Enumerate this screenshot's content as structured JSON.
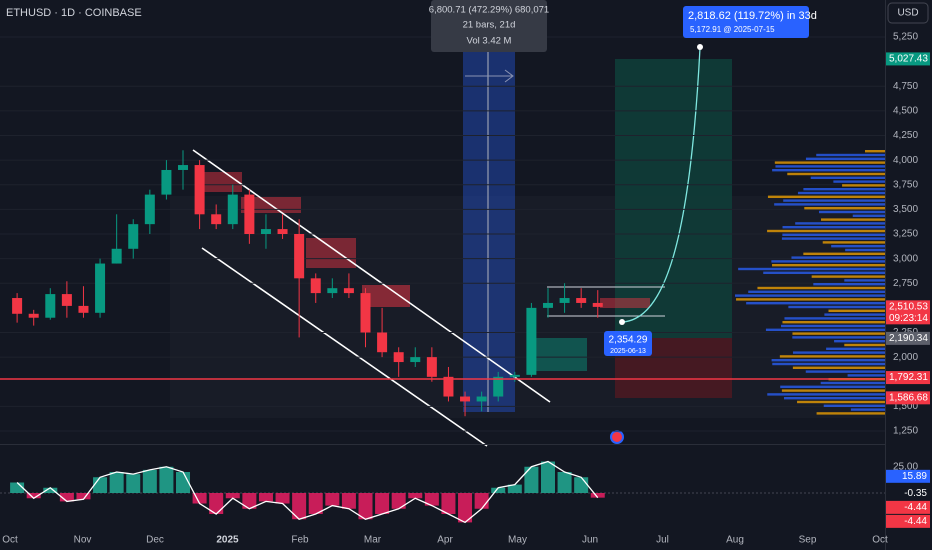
{
  "header": {
    "symbol": "ETHUSD · 1D · COINBASE",
    "currency": "USD"
  },
  "measure": {
    "line1": "6,800.71 (472.29%) 680,071",
    "line2": "21 bars, 21d",
    "line3": "Vol 3.42 M"
  },
  "projection": {
    "line1": "2,818.62 (119.72%) in 33d",
    "line2": "5,172.91 @ 2025-07-15"
  },
  "low_label": {
    "price": "2,354.29",
    "date": "2025-06-13"
  },
  "price_axis": {
    "ticks": [
      {
        "value": 5250,
        "label": "5,250"
      },
      {
        "value": 4750,
        "label": "4,750"
      },
      {
        "value": 4500,
        "label": "4,500"
      },
      {
        "value": 4250,
        "label": "4,250"
      },
      {
        "value": 4000,
        "label": "4,000"
      },
      {
        "value": 3750,
        "label": "3,750"
      },
      {
        "value": 3500,
        "label": "3,500"
      },
      {
        "value": 3250,
        "label": "3,250"
      },
      {
        "value": 3000,
        "label": "3,000"
      },
      {
        "value": 2750,
        "label": "2,750"
      },
      {
        "value": 2250,
        "label": "2,250"
      },
      {
        "value": 2000,
        "label": "2,000"
      },
      {
        "value": 1500,
        "label": "1,500"
      },
      {
        "value": 1250,
        "label": "1,250"
      }
    ],
    "badges": [
      {
        "value": 5027.43,
        "label": "5,027.43",
        "color": "#089981"
      },
      {
        "value": 2510.53,
        "label": "2,510.53",
        "sub": "09:23:14",
        "color": "#f23645"
      },
      {
        "value": 2190.34,
        "label": "2,190.34",
        "color": "#5d606b"
      },
      {
        "value": 1792.31,
        "label": "1,792.31",
        "color": "#f23645"
      },
      {
        "value": 1586.68,
        "label": "1,586.68",
        "color": "#f23645"
      }
    ]
  },
  "time_axis": [
    "Oct",
    "Nov",
    "Dec",
    "2025",
    "Feb",
    "Mar",
    "Apr",
    "May",
    "Jun",
    "Jul",
    "Aug",
    "Sep",
    "Oct"
  ],
  "candles": [
    [
      2600,
      2650,
      2350,
      2440
    ],
    [
      2440,
      2480,
      2320,
      2400
    ],
    [
      2400,
      2700,
      2380,
      2640
    ],
    [
      2640,
      2770,
      2400,
      2520
    ],
    [
      2520,
      2720,
      2400,
      2450
    ],
    [
      2450,
      3000,
      2400,
      2950
    ],
    [
      2950,
      3450,
      2950,
      3100
    ],
    [
      3100,
      3400,
      3000,
      3350
    ],
    [
      3350,
      3700,
      3250,
      3650
    ],
    [
      3650,
      4000,
      3600,
      3900
    ],
    [
      3900,
      4100,
      3700,
      3950
    ],
    [
      3950,
      4000,
      3300,
      3450
    ],
    [
      3450,
      3550,
      3300,
      3350
    ],
    [
      3350,
      3750,
      3300,
      3650
    ],
    [
      3650,
      3700,
      3150,
      3250
    ],
    [
      3250,
      3450,
      3100,
      3300
    ],
    [
      3300,
      3450,
      3200,
      3250
    ],
    [
      3250,
      3400,
      2200,
      2800
    ],
    [
      2800,
      2850,
      2550,
      2650
    ],
    [
      2650,
      2800,
      2600,
      2700
    ],
    [
      2700,
      2850,
      2600,
      2650
    ],
    [
      2650,
      2700,
      2100,
      2250
    ],
    [
      2250,
      2500,
      2000,
      2050
    ],
    [
      2050,
      2100,
      1800,
      1950
    ],
    [
      1950,
      2100,
      1900,
      2000
    ],
    [
      2000,
      2100,
      1750,
      1800
    ],
    [
      1800,
      1900,
      1550,
      1600
    ],
    [
      1600,
      1650,
      1400,
      1550
    ],
    [
      1550,
      1650,
      1450,
      1600
    ],
    [
      1600,
      1850,
      1550,
      1800
    ],
    [
      1800,
      1850,
      1750,
      1820
    ],
    [
      1820,
      2550,
      1800,
      2500
    ],
    [
      2500,
      2700,
      2400,
      2550
    ],
    [
      2550,
      2750,
      2450,
      2600
    ],
    [
      2600,
      2700,
      2500,
      2550
    ],
    [
      2550,
      2680,
      2400,
      2510
    ]
  ],
  "oscillator": {
    "values": [
      10,
      -5,
      5,
      -8,
      -6,
      15,
      20,
      18,
      22,
      25,
      20,
      -10,
      -20,
      -5,
      -15,
      -8,
      -10,
      -25,
      -20,
      -12,
      -15,
      -25,
      -20,
      -15,
      -5,
      -12,
      -20,
      -28,
      -15,
      5,
      8,
      25,
      30,
      20,
      15,
      -4.44
    ],
    "ticks": [
      {
        "value": 25,
        "label": "25.00"
      }
    ],
    "badges": [
      {
        "value": 15.89,
        "label": "15.89",
        "color": "#2962ff"
      },
      {
        "value": -0.35,
        "label": "-0.35",
        "color": "#131722"
      },
      {
        "value": -4.44,
        "label": "-4.44",
        "color": "#f23645"
      },
      {
        "value": -4.44,
        "label": "-4.44",
        "color": "#f23645"
      }
    ]
  }
}
